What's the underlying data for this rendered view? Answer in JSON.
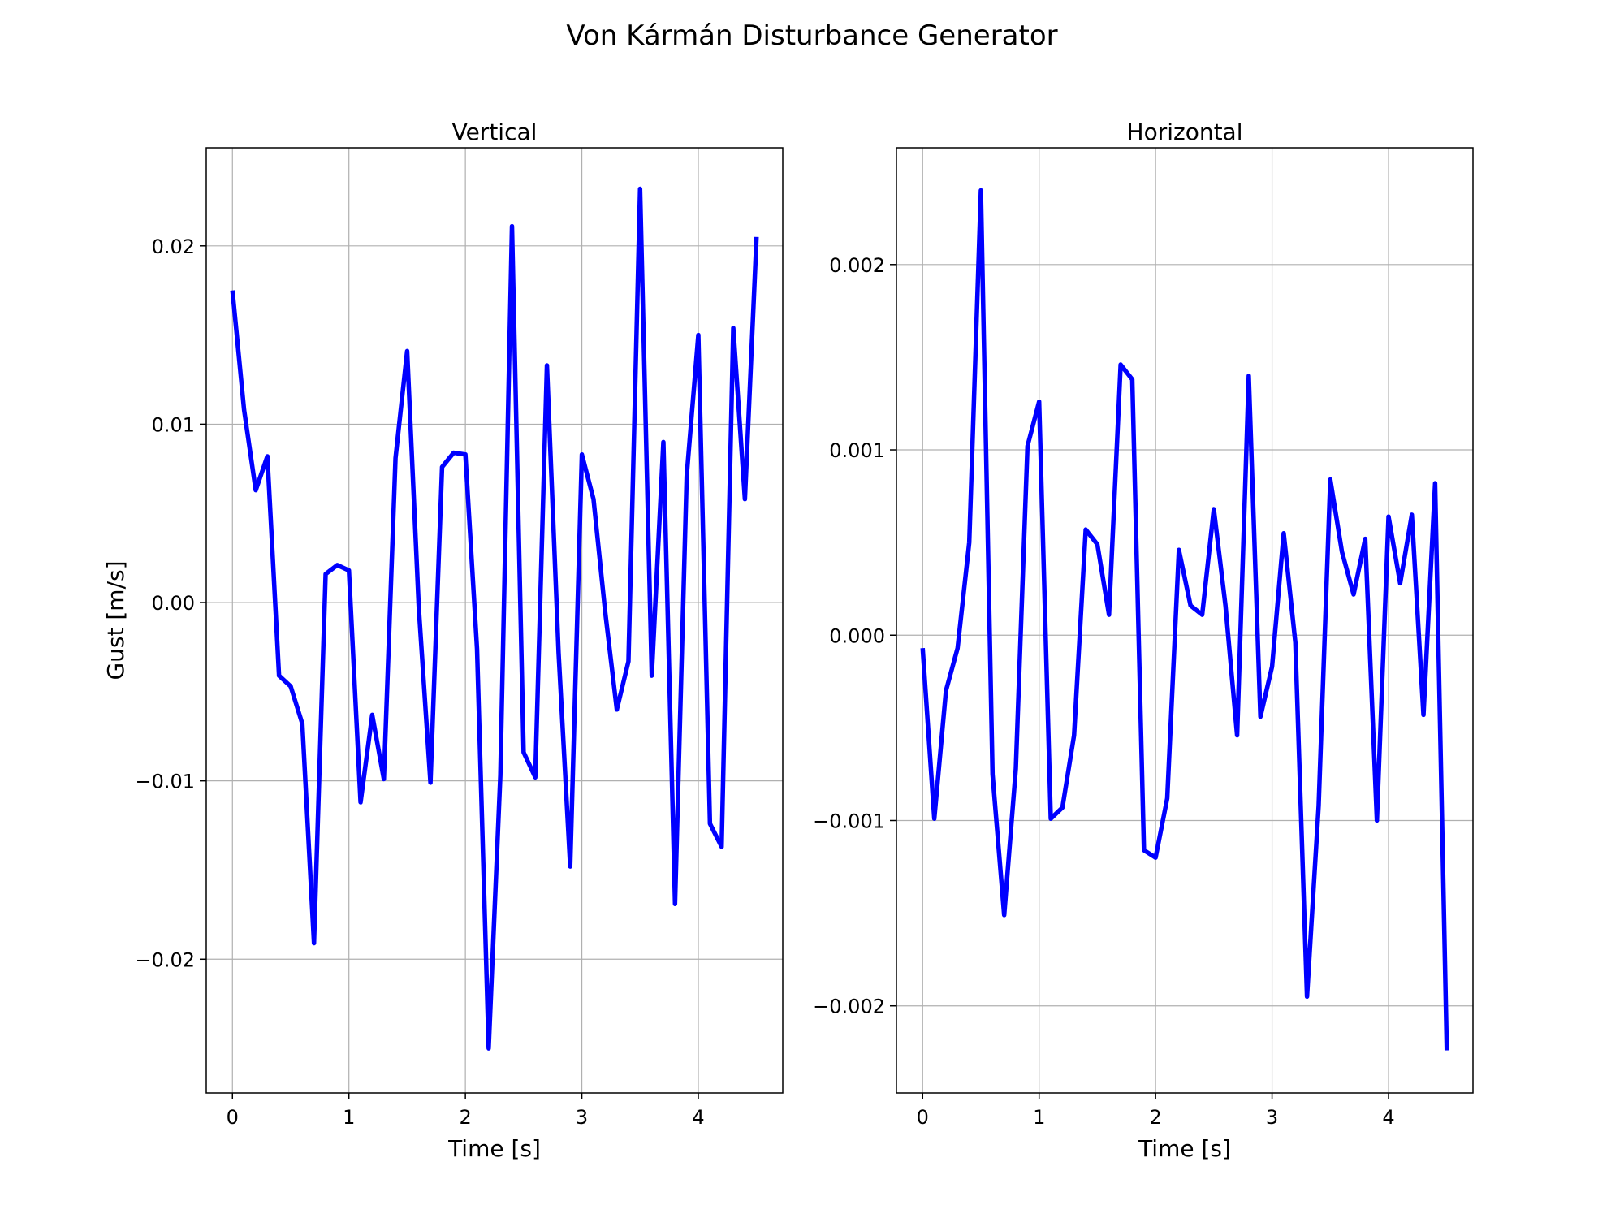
{
  "figure": {
    "title": "Von Kármán Disturbance Generator"
  },
  "chart_data": [
    {
      "type": "line",
      "title": "Vertical",
      "xlabel": "Time [s]",
      "ylabel": "Gust [m/s]",
      "xlim": [
        -0.225,
        4.725
      ],
      "ylim": [
        -0.0275,
        0.0255
      ],
      "xticks": [
        0,
        1,
        2,
        3,
        4
      ],
      "xtick_labels": [
        "0",
        "1",
        "2",
        "3",
        "4"
      ],
      "yticks": [
        -0.02,
        -0.01,
        0.0,
        0.01,
        0.02
      ],
      "ytick_labels": [
        "−0.02",
        "−0.01",
        "0.00",
        "0.01",
        "0.02"
      ],
      "grid": true,
      "color": "#0000ff",
      "x": [
        0.0,
        0.1,
        0.2,
        0.3,
        0.4,
        0.5,
        0.6,
        0.7,
        0.8,
        0.9,
        1.0,
        1.1,
        1.2,
        1.3,
        1.4,
        1.5,
        1.6,
        1.7,
        1.8,
        1.9,
        2.0,
        2.1,
        2.2,
        2.3,
        2.4,
        2.5,
        2.6,
        2.7,
        2.8,
        2.9,
        3.0,
        3.1,
        3.2,
        3.3,
        3.4,
        3.5,
        3.6,
        3.7,
        3.8,
        3.9,
        4.0,
        4.1,
        4.2,
        4.3,
        4.4,
        4.5
      ],
      "y": [
        0.0175,
        0.0108,
        0.0063,
        0.0082,
        -0.0041,
        -0.0047,
        -0.0068,
        -0.0191,
        0.0016,
        0.0021,
        0.0018,
        -0.0112,
        -0.0063,
        -0.0099,
        0.0081,
        0.0141,
        -0.0003,
        -0.0101,
        0.0076,
        0.0084,
        0.0083,
        -0.0026,
        -0.025,
        -0.0097,
        0.0211,
        -0.0084,
        -0.0098,
        0.0133,
        -0.0028,
        -0.0148,
        0.0083,
        0.0058,
        -0.0005,
        -0.006,
        -0.0033,
        0.0232,
        -0.0041,
        0.009,
        -0.0169,
        0.0071,
        0.015,
        -0.0124,
        -0.0137,
        0.0154,
        0.0058,
        0.0205
      ]
    },
    {
      "type": "line",
      "title": "Horizontal",
      "xlabel": "Time [s]",
      "ylabel": "",
      "xlim": [
        -0.225,
        4.725
      ],
      "ylim": [
        -0.00247,
        0.00263
      ],
      "xticks": [
        0,
        1,
        2,
        3,
        4
      ],
      "xtick_labels": [
        "0",
        "1",
        "2",
        "3",
        "4"
      ],
      "yticks": [
        -0.002,
        -0.001,
        0.0,
        0.001,
        0.002
      ],
      "ytick_labels": [
        "−0.002",
        "−0.001",
        "0.000",
        "0.001",
        "0.002"
      ],
      "grid": true,
      "color": "#0000ff",
      "x": [
        0.0,
        0.1,
        0.2,
        0.3,
        0.4,
        0.5,
        0.6,
        0.7,
        0.8,
        0.9,
        1.0,
        1.1,
        1.2,
        1.3,
        1.4,
        1.5,
        1.6,
        1.7,
        1.8,
        1.9,
        2.0,
        2.1,
        2.2,
        2.3,
        2.4,
        2.5,
        2.6,
        2.7,
        2.8,
        2.9,
        3.0,
        3.1,
        3.2,
        3.3,
        3.4,
        3.5,
        3.6,
        3.7,
        3.8,
        3.9,
        4.0,
        4.1,
        4.2,
        4.3,
        4.4,
        4.5
      ],
      "y": [
        -7e-05,
        -0.00099,
        -0.0003,
        -7e-05,
        0.0005,
        0.0024,
        -0.00075,
        -0.00151,
        -0.00072,
        0.00102,
        0.00126,
        -0.00099,
        -0.00093,
        -0.00054,
        0.00057,
        0.00049,
        0.00011,
        0.00146,
        0.00138,
        -0.00116,
        -0.0012,
        -0.00088,
        0.00046,
        0.00016,
        0.00011,
        0.00068,
        0.00016,
        -0.00054,
        0.0014,
        -0.00044,
        -0.00017,
        0.00055,
        -4e-05,
        -0.00195,
        -0.00092,
        0.00084,
        0.00045,
        0.00022,
        0.00052,
        -0.001,
        0.00064,
        0.00028,
        0.00065,
        -0.00043,
        0.00082,
        -0.00224
      ]
    }
  ]
}
